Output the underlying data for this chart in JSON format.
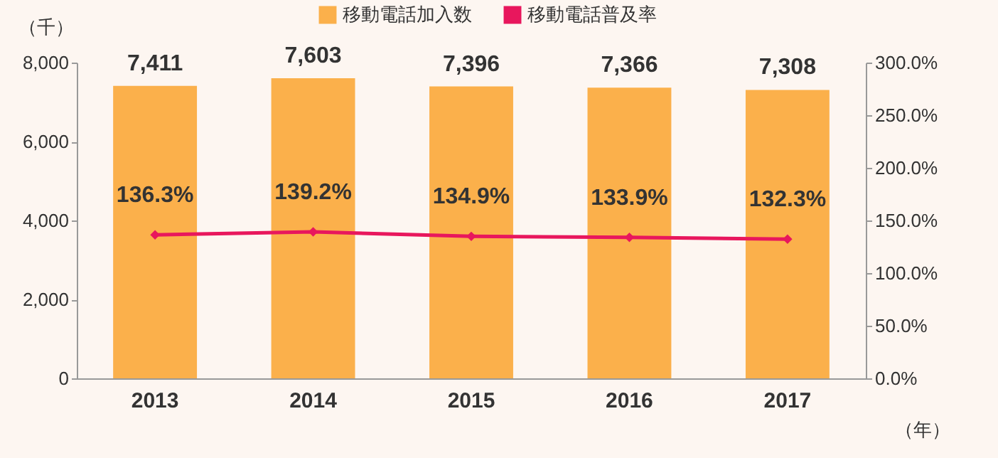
{
  "chart_data": {
    "type": "bar",
    "categories": [
      "2013",
      "2014",
      "2015",
      "2016",
      "2017"
    ],
    "ylabel": "（千）",
    "xlabel": "（年）",
    "ylim": [
      0,
      8000
    ],
    "yticks": [
      {
        "value": 0,
        "label": "0"
      },
      {
        "value": 2000,
        "label": "2,000"
      },
      {
        "value": 4000,
        "label": "4,000"
      },
      {
        "value": 6000,
        "label": "6,000"
      },
      {
        "value": 8000,
        "label": "8,000"
      }
    ],
    "y2lim": [
      0,
      300
    ],
    "y2ticks": [
      {
        "value": 0,
        "label": "0.0%"
      },
      {
        "value": 50,
        "label": "50.0%"
      },
      {
        "value": 100,
        "label": "100.0%"
      },
      {
        "value": 150,
        "label": "150.0%"
      },
      {
        "value": 200,
        "label": "200.0%"
      },
      {
        "value": 250,
        "label": "250.0%"
      },
      {
        "value": 300,
        "label": "300.0%"
      }
    ],
    "legend": "top",
    "series": [
      {
        "name": "移動電話加入数",
        "color": "#fbb04b",
        "values": [
          7411,
          7603,
          7396,
          7366,
          7308
        ],
        "value_labels": [
          "7,411",
          "7,603",
          "7,396",
          "7,366",
          "7,308"
        ]
      },
      {
        "name": "移動電話普及率",
        "type": "line",
        "axis": "y2",
        "color": "#e8175d",
        "marker": "diamond",
        "values": [
          136.3,
          139.2,
          134.9,
          133.9,
          132.3
        ],
        "value_labels": [
          "136.3%",
          "139.2%",
          "134.9%",
          "133.9%",
          "132.3%"
        ]
      }
    ]
  }
}
